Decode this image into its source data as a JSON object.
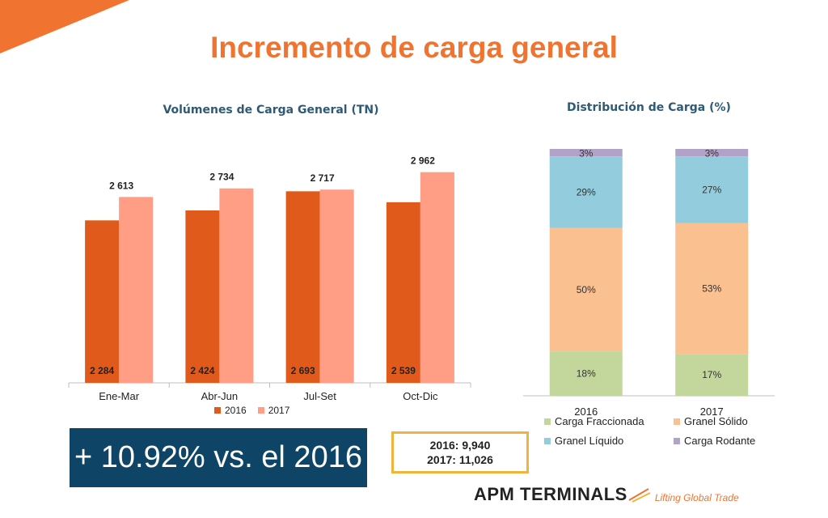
{
  "title": "Incremento de carga general",
  "colors": {
    "accent": "#f07430",
    "s2016": "#e05a1c",
    "s2017": "#ff9e85",
    "navy": "#0e4466",
    "gold": "#f0b43c"
  },
  "chart_data": [
    {
      "type": "bar",
      "title": "Volúmenes de Carga General (TN)",
      "categories": [
        "Ene-Mar",
        "Abr-Jun",
        "Jul-Set",
        "Oct-Dic"
      ],
      "series": [
        {
          "name": "2016",
          "values": [
            2284,
            2424,
            2693,
            2539
          ],
          "labels": [
            "2 284",
            "2 424",
            "2 693",
            "2 539"
          ],
          "color": "#e05a1c"
        },
        {
          "name": "2017",
          "values": [
            2613,
            2734,
            2717,
            2962
          ],
          "labels": [
            "2 613",
            "2 734",
            "2 717",
            "2 962"
          ],
          "color": "#ff9e85"
        }
      ],
      "ylim": [
        0,
        3300
      ],
      "legend": "bottom"
    },
    {
      "type": "bar",
      "stacked": true,
      "title": "Distribución de Carga (%)",
      "categories": [
        "2016",
        "2017"
      ],
      "series": [
        {
          "name": "Carga Fraccionada",
          "values": [
            18,
            17
          ],
          "labels": [
            "18%",
            "17%"
          ],
          "color": "#c3d69b"
        },
        {
          "name": "Granel Sólido",
          "values": [
            50,
            53
          ],
          "labels": [
            "50%",
            "53%"
          ],
          "color": "#fac090"
        },
        {
          "name": "Granel Líquido",
          "values": [
            29,
            27
          ],
          "labels": [
            "29%",
            "27%"
          ],
          "color": "#93cddd"
        },
        {
          "name": "Carga Rodante",
          "values": [
            3,
            3
          ],
          "labels": [
            "3%",
            "3%"
          ],
          "color": "#b3a2c7"
        }
      ],
      "ylim": [
        0,
        100
      ],
      "legend": "bottom"
    }
  ],
  "highlight": "+ 10.92% vs. el 2016",
  "totals": {
    "line1": "2016: 9,940",
    "line2": "2017: 11,026"
  },
  "logo": {
    "name": "APM TERMINALS",
    "tagline": "Lifting Global Trade"
  }
}
